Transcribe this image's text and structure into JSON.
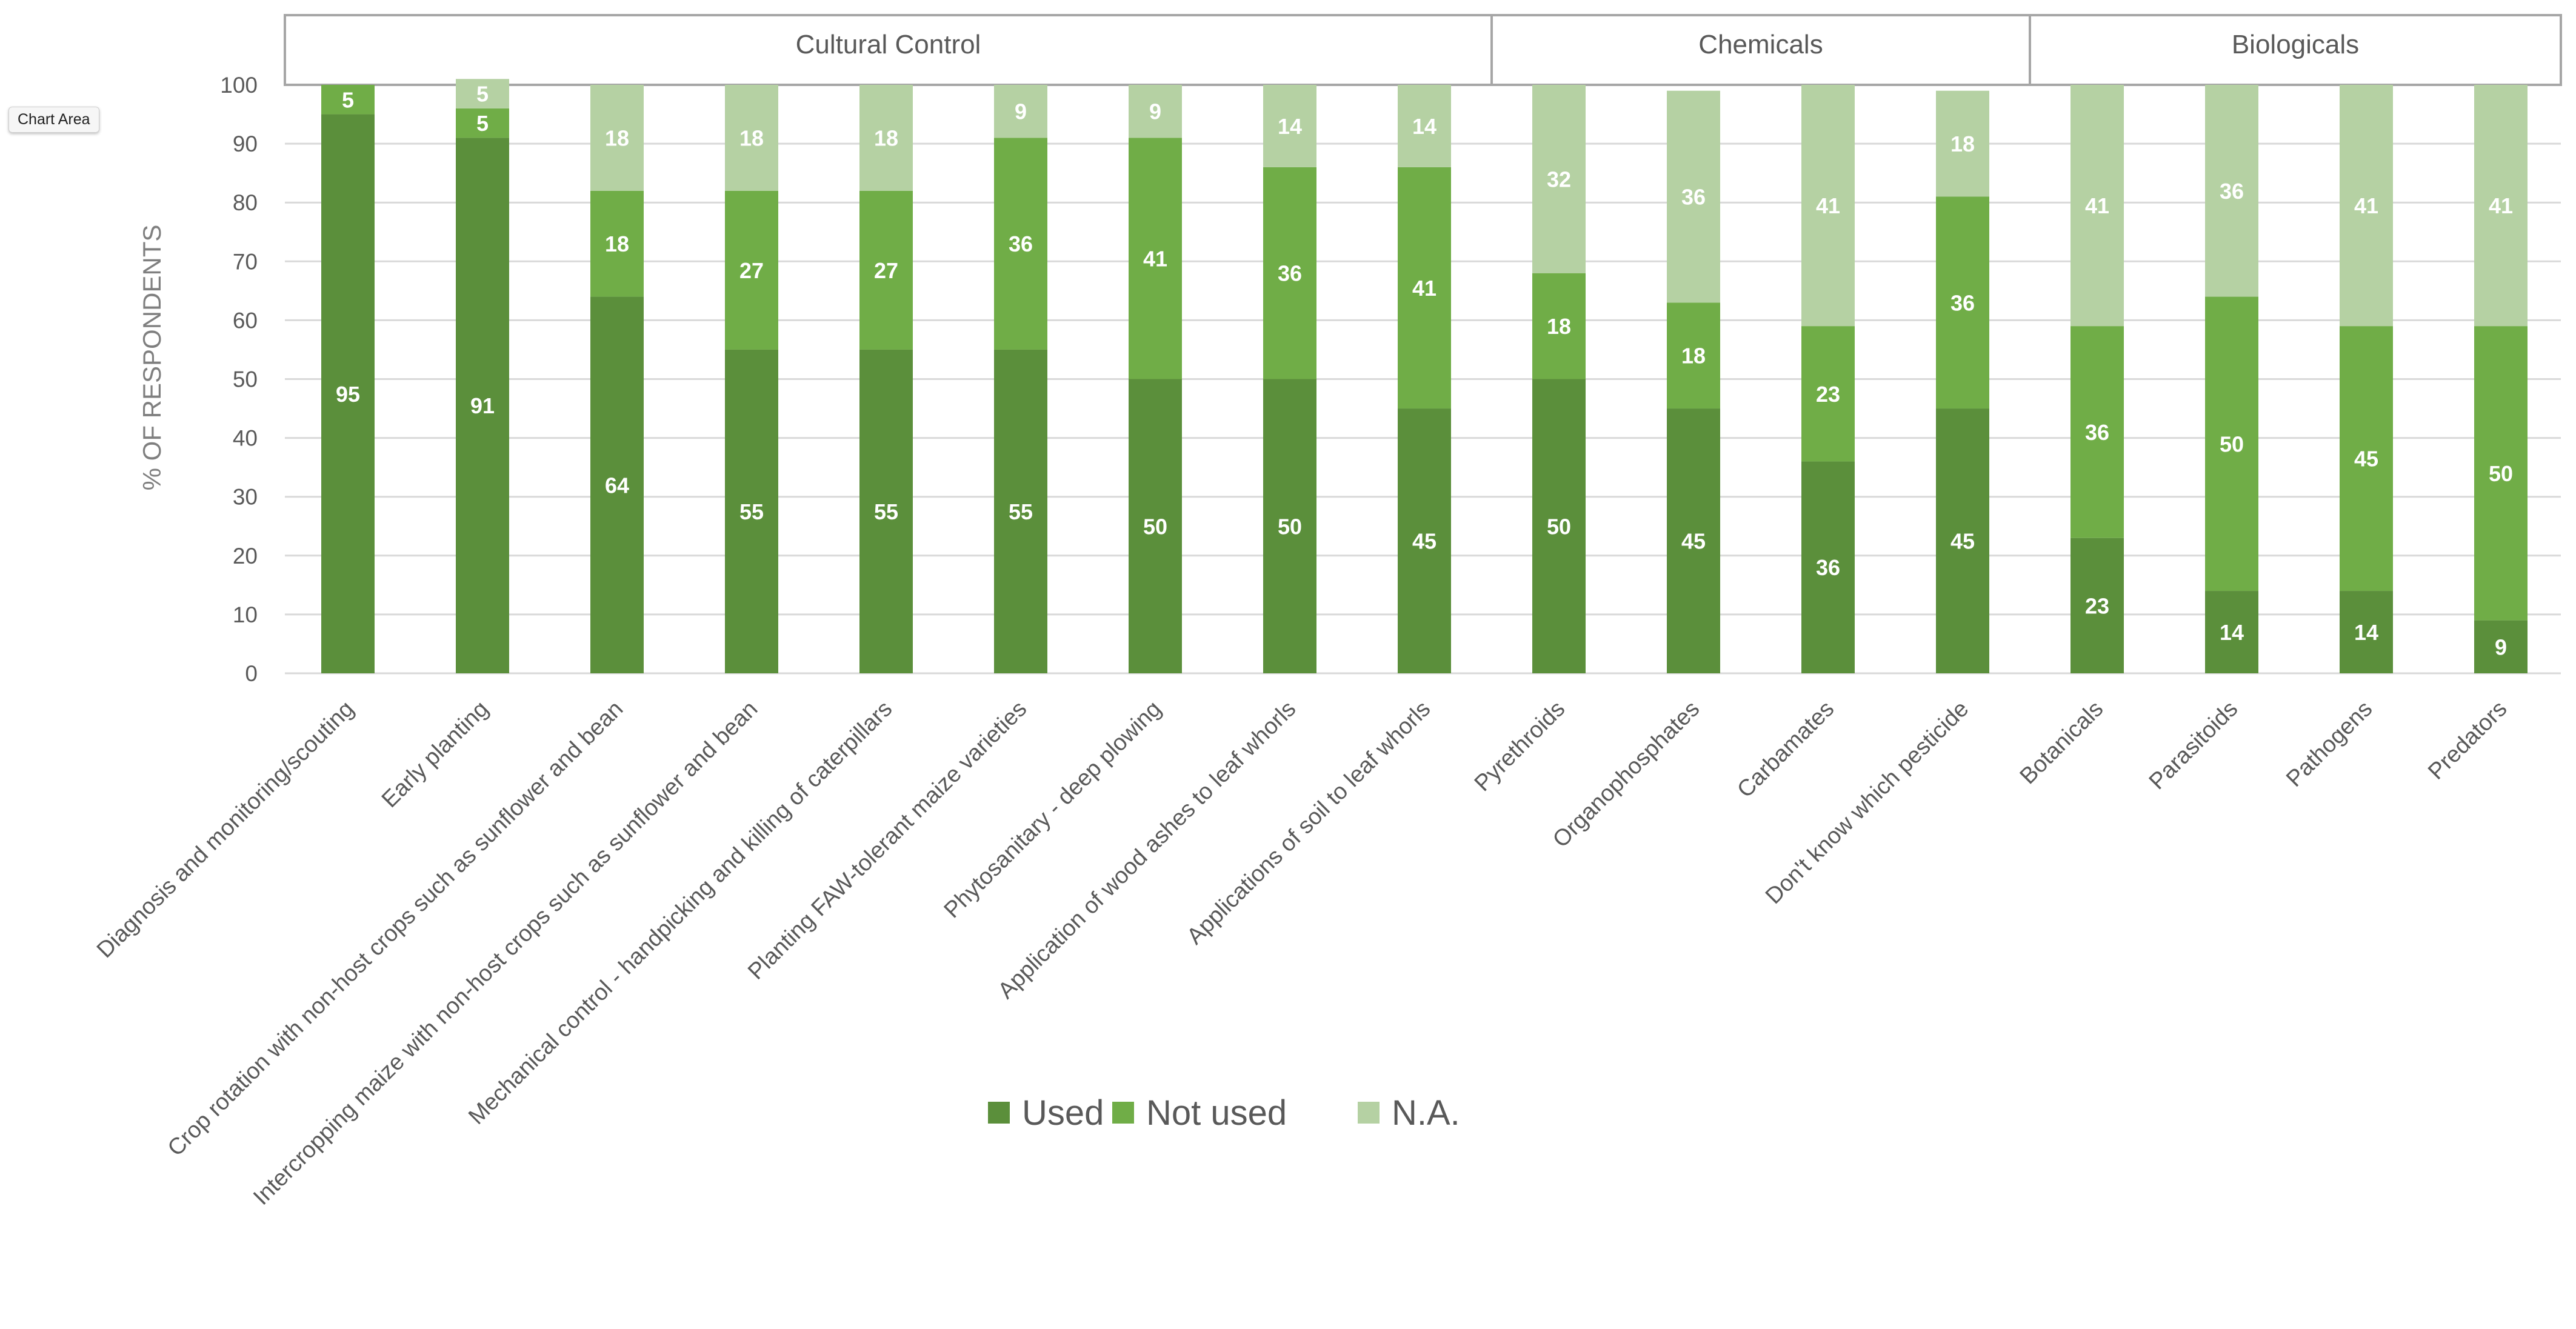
{
  "chart_data": {
    "type": "bar",
    "stacked": true,
    "title": "",
    "xlabel": "",
    "ylabel": "% OF RESPONDENTS",
    "ylim": [
      0,
      100
    ],
    "yticks": [
      0,
      10,
      20,
      30,
      40,
      50,
      60,
      70,
      80,
      90,
      100
    ],
    "grid": true,
    "legend_position": "bottom",
    "groups": [
      {
        "label": "Cultural Control",
        "count": 9
      },
      {
        "label": "Chemicals",
        "count": 4
      },
      {
        "label": "Biologicals",
        "count": 4
      }
    ],
    "categories": [
      "Diagnosis and monitoring/scouting",
      "Early planting",
      "Crop rotation with non-host crops such as sunflower and bean",
      "Intercropping maize with non-host crops such as sunflower and bean",
      "Mechanical control - handpicking and killing of caterpillars",
      "Planting FAW-tolerant maize varieties",
      "Phytosanitary - deep plowing",
      "Application of wood ashes to leaf whorls",
      "Applications of soil to leaf whorls",
      "Pyrethroids",
      "Organophosphates",
      "Carbamates",
      "Don't know which pesticide",
      "Botanicals",
      "Parasitoids",
      "Pathogens",
      "Predators"
    ],
    "series": [
      {
        "name": "Used",
        "color": "#5b8f3b",
        "values": [
          95,
          91,
          64,
          55,
          55,
          55,
          50,
          50,
          45,
          50,
          45,
          36,
          45,
          23,
          14,
          14,
          9
        ]
      },
      {
        "name": "Not used",
        "color": "#70ad47",
        "values": [
          5,
          5,
          18,
          27,
          27,
          36,
          41,
          36,
          41,
          18,
          18,
          23,
          36,
          36,
          50,
          45,
          50
        ]
      },
      {
        "name": "N.A.",
        "color": "#b5d1a3",
        "values": [
          0,
          5,
          18,
          18,
          18,
          9,
          9,
          14,
          14,
          32,
          36,
          41,
          18,
          41,
          36,
          41,
          41
        ]
      }
    ]
  },
  "tooltip": {
    "label": "Chart Area"
  }
}
